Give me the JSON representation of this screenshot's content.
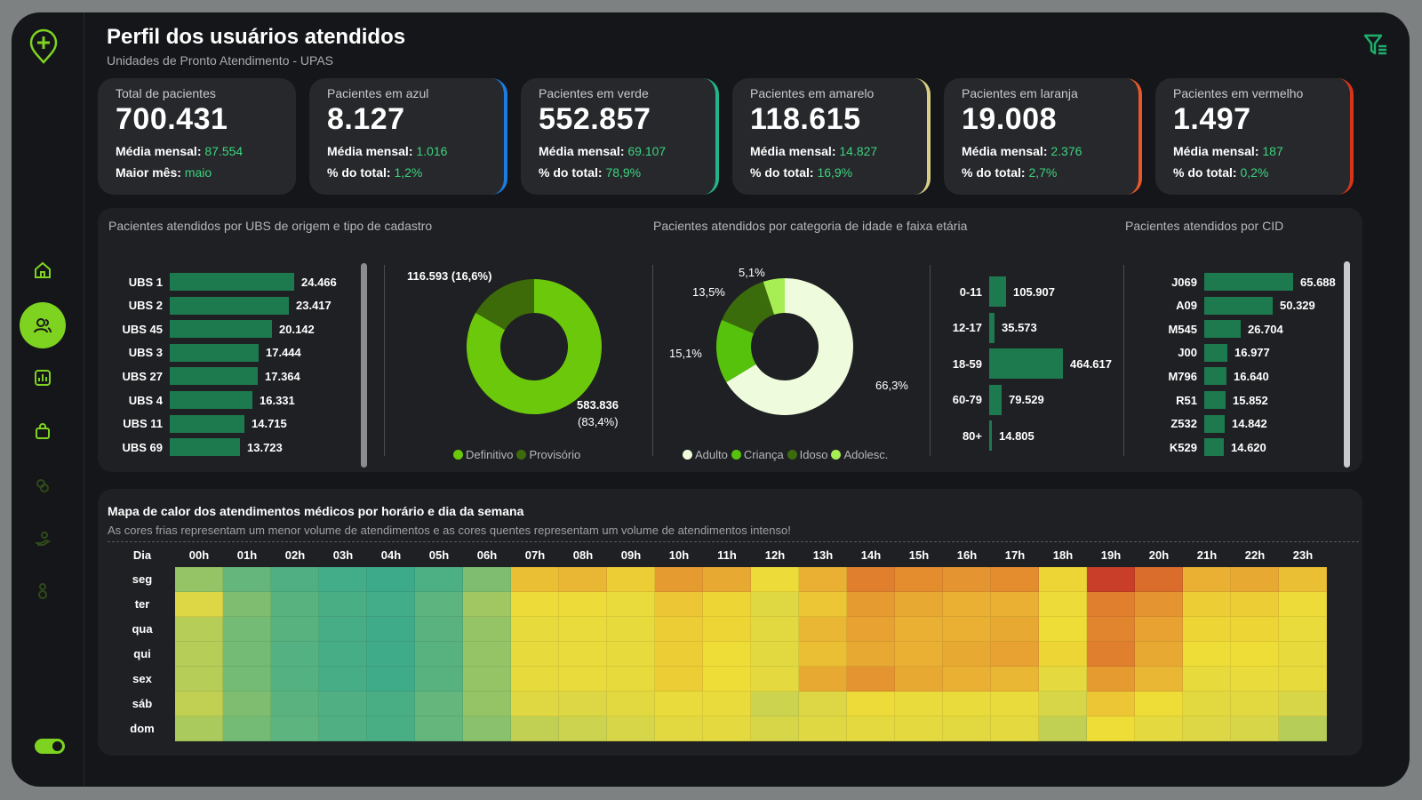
{
  "header": {
    "title": "Perfil dos usuários atendidos",
    "subtitle": "Unidades de Pronto Atendimento - UPAS"
  },
  "cards": [
    {
      "label": "Total de pacientes",
      "value": "700.431",
      "l1": "Média mensal:",
      "v1": "87.554",
      "l2": "Maior mês:",
      "v2": "maio",
      "edge": ""
    },
    {
      "label": "Pacientes em azul",
      "value": "8.127",
      "l1": "Média mensal:",
      "v1": "1.016",
      "l2": "% do total:",
      "v2": "1,2%",
      "edge": "#1e7be0"
    },
    {
      "label": "Pacientes em verde",
      "value": "552.857",
      "l1": "Média mensal:",
      "v1": "69.107",
      "l2": "% do total:",
      "v2": "78,9%",
      "edge": "#24b48c"
    },
    {
      "label": "Pacientes em amarelo",
      "value": "118.615",
      "l1": "Média mensal:",
      "v1": "14.827",
      "l2": "% do total:",
      "v2": "16,9%",
      "edge": "#d8cf86"
    },
    {
      "label": "Pacientes em laranja",
      "value": "19.008",
      "l1": "Média mensal:",
      "v1": "2.376",
      "l2": "% do total:",
      "v2": "2,7%",
      "edge": "#e8582a"
    },
    {
      "label": "Pacientes em vermelho",
      "value": "1.497",
      "l1": "Média mensal:",
      "v1": "187",
      "l2": "% do total:",
      "v2": "0,2%",
      "edge": "#d8341c"
    }
  ],
  "panels": {
    "ubs_title": "Pacientes atendidos por UBS de origem e tipo de cadastro",
    "age_title": "Pacientes atendidos por categoria de idade e faixa etária",
    "cid_title": "Pacientes atendidos por CID"
  },
  "ubs_bars": {
    "categories": [
      "UBS 1",
      "UBS 2",
      "UBS 45",
      "UBS 3",
      "UBS 27",
      "UBS 4",
      "UBS 11",
      "UBS 69"
    ],
    "values": [
      24466,
      23417,
      20142,
      17444,
      17364,
      16331,
      14715,
      13723
    ],
    "labels": [
      "24.466",
      "23.417",
      "20.142",
      "17.444",
      "17.364",
      "16.331",
      "14.715",
      "13.723"
    ]
  },
  "cadastro_donut": {
    "slices": [
      {
        "name": "Definitivo",
        "value": 583836,
        "label1": "583.836",
        "label2": "(83,4%)",
        "color": "#6cc80a"
      },
      {
        "name": "Provisório",
        "value": 116593,
        "label1": "116.593 (16,6%)",
        "label2": "",
        "color": "#3d6b0a"
      }
    ]
  },
  "age_donut": {
    "slices": [
      {
        "name": "Adulto",
        "value": 66.3,
        "label": "66,3%",
        "color": "#eefbdc"
      },
      {
        "name": "Criança",
        "value": 15.1,
        "label": "15,1%",
        "color": "#57c20c"
      },
      {
        "name": "Idoso",
        "value": 13.5,
        "label": "13,5%",
        "color": "#3b6c0c"
      },
      {
        "name": "Adolesc.",
        "value": 5.1,
        "label": "5,1%",
        "color": "#a7ee55"
      }
    ]
  },
  "faixa_bars": {
    "categories": [
      "0-11",
      "12-17",
      "18-59",
      "60-79",
      "80+"
    ],
    "values": [
      105907,
      35573,
      464617,
      79529,
      14805
    ],
    "labels": [
      "105.907",
      "35.573",
      "464.617",
      "79.529",
      "14.805"
    ]
  },
  "cid_bars": {
    "categories": [
      "J069",
      "A09",
      "M545",
      "J00",
      "M796",
      "R51",
      "Z532",
      "K529"
    ],
    "values": [
      65688,
      50329,
      26704,
      16977,
      16640,
      15852,
      14842,
      14620
    ],
    "labels": [
      "65.688",
      "50.329",
      "26.704",
      "16.977",
      "16.640",
      "15.852",
      "14.842",
      "14.620"
    ]
  },
  "heatmap": {
    "title": "Mapa de calor dos atendimentos médicos por horário e dia da semana",
    "subtitle": "As cores frias representam um menor volume de atendimentos e as cores quentes representam um volume de atendimentos intenso!",
    "corner": "Dia",
    "hours": [
      "00h",
      "01h",
      "02h",
      "03h",
      "04h",
      "05h",
      "06h",
      "07h",
      "08h",
      "09h",
      "10h",
      "11h",
      "12h",
      "13h",
      "14h",
      "15h",
      "16h",
      "17h",
      "18h",
      "19h",
      "20h",
      "21h",
      "22h",
      "23h"
    ],
    "days": [
      "seg",
      "ter",
      "qua",
      "qui",
      "sex",
      "sáb",
      "dom"
    ],
    "levels": [
      [
        0.32,
        0.22,
        0.16,
        0.12,
        0.1,
        0.15,
        0.28,
        0.68,
        0.7,
        0.64,
        0.78,
        0.74,
        0.58,
        0.72,
        0.86,
        0.82,
        0.8,
        0.82,
        0.62,
        0.98,
        0.9,
        0.72,
        0.74,
        0.68
      ],
      [
        0.46,
        0.28,
        0.18,
        0.14,
        0.12,
        0.2,
        0.34,
        0.58,
        0.58,
        0.56,
        0.66,
        0.62,
        0.48,
        0.66,
        0.78,
        0.74,
        0.72,
        0.72,
        0.58,
        0.86,
        0.8,
        0.64,
        0.64,
        0.58
      ],
      [
        0.38,
        0.26,
        0.18,
        0.13,
        0.11,
        0.19,
        0.32,
        0.54,
        0.56,
        0.54,
        0.64,
        0.62,
        0.5,
        0.7,
        0.76,
        0.72,
        0.72,
        0.74,
        0.6,
        0.84,
        0.76,
        0.62,
        0.62,
        0.56
      ],
      [
        0.38,
        0.26,
        0.17,
        0.13,
        0.11,
        0.18,
        0.32,
        0.54,
        0.56,
        0.54,
        0.64,
        0.6,
        0.5,
        0.68,
        0.74,
        0.72,
        0.74,
        0.76,
        0.62,
        0.86,
        0.74,
        0.6,
        0.6,
        0.54
      ],
      [
        0.38,
        0.26,
        0.17,
        0.13,
        0.11,
        0.18,
        0.32,
        0.54,
        0.56,
        0.54,
        0.64,
        0.6,
        0.52,
        0.74,
        0.8,
        0.74,
        0.72,
        0.7,
        0.52,
        0.78,
        0.7,
        0.54,
        0.56,
        0.54
      ],
      [
        0.4,
        0.28,
        0.19,
        0.16,
        0.14,
        0.22,
        0.32,
        0.48,
        0.46,
        0.5,
        0.56,
        0.56,
        0.42,
        0.46,
        0.58,
        0.56,
        0.56,
        0.56,
        0.44,
        0.66,
        0.6,
        0.5,
        0.5,
        0.44
      ],
      [
        0.36,
        0.26,
        0.2,
        0.16,
        0.14,
        0.22,
        0.3,
        0.4,
        0.42,
        0.44,
        0.5,
        0.52,
        0.44,
        0.48,
        0.52,
        0.52,
        0.5,
        0.52,
        0.4,
        0.6,
        0.52,
        0.46,
        0.44,
        0.38
      ]
    ]
  },
  "colors": {
    "accent": "#7ed321",
    "bar": "#1d7a4e",
    "value_green": "#3ed37e"
  },
  "sidebar_icons": [
    "logo-plus-icon",
    "home-icon",
    "users-icon",
    "chart-icon",
    "bag-icon",
    "coins-icon",
    "hand-money-icon",
    "person-money-icon"
  ]
}
